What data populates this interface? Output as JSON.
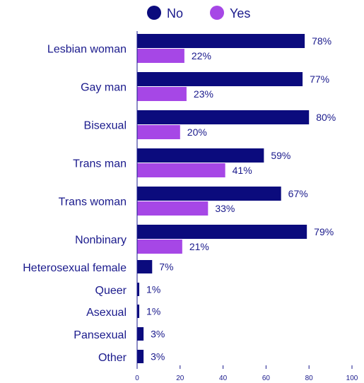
{
  "colors": {
    "no": "#0b0b7d",
    "yes": "#a647e6",
    "text": "#1a1a8c",
    "axis": "#1a1a8c"
  },
  "chart_data": {
    "type": "bar",
    "orientation": "horizontal",
    "legend_position": "top-center",
    "series": [
      {
        "name": "No",
        "color": "#0b0b7d"
      },
      {
        "name": "Yes",
        "color": "#a647e6"
      }
    ],
    "categories": [
      {
        "label": "Lesbian woman",
        "values": [
          78,
          22
        ],
        "labels": [
          "78%",
          "22%"
        ]
      },
      {
        "label": "Gay man",
        "values": [
          77,
          23
        ],
        "labels": [
          "77%",
          "23%"
        ]
      },
      {
        "label": "Bisexual",
        "values": [
          80,
          20
        ],
        "labels": [
          "80%",
          "20%"
        ]
      },
      {
        "label": "Trans man",
        "values": [
          59,
          41
        ],
        "labels": [
          "59%",
          "41%"
        ]
      },
      {
        "label": "Trans woman",
        "values": [
          67,
          33
        ],
        "labels": [
          "67%",
          "33%"
        ]
      },
      {
        "label": "Nonbinary",
        "values": [
          79,
          21
        ],
        "labels": [
          "79%",
          "21%"
        ]
      },
      {
        "label": "Heterosexual female",
        "values": [
          7
        ],
        "labels": [
          "7%"
        ]
      },
      {
        "label": "Queer",
        "values": [
          1
        ],
        "labels": [
          "1%"
        ]
      },
      {
        "label": "Asexual",
        "values": [
          1
        ],
        "labels": [
          "1%"
        ]
      },
      {
        "label": "Pansexual",
        "values": [
          3
        ],
        "labels": [
          "3%"
        ]
      },
      {
        "label": "Other",
        "values": [
          3
        ],
        "labels": [
          "3%"
        ]
      }
    ],
    "xlim": [
      0,
      100
    ],
    "xticks": [
      "0",
      "20",
      "40",
      "60",
      "80",
      "100"
    ],
    "grid": false
  }
}
